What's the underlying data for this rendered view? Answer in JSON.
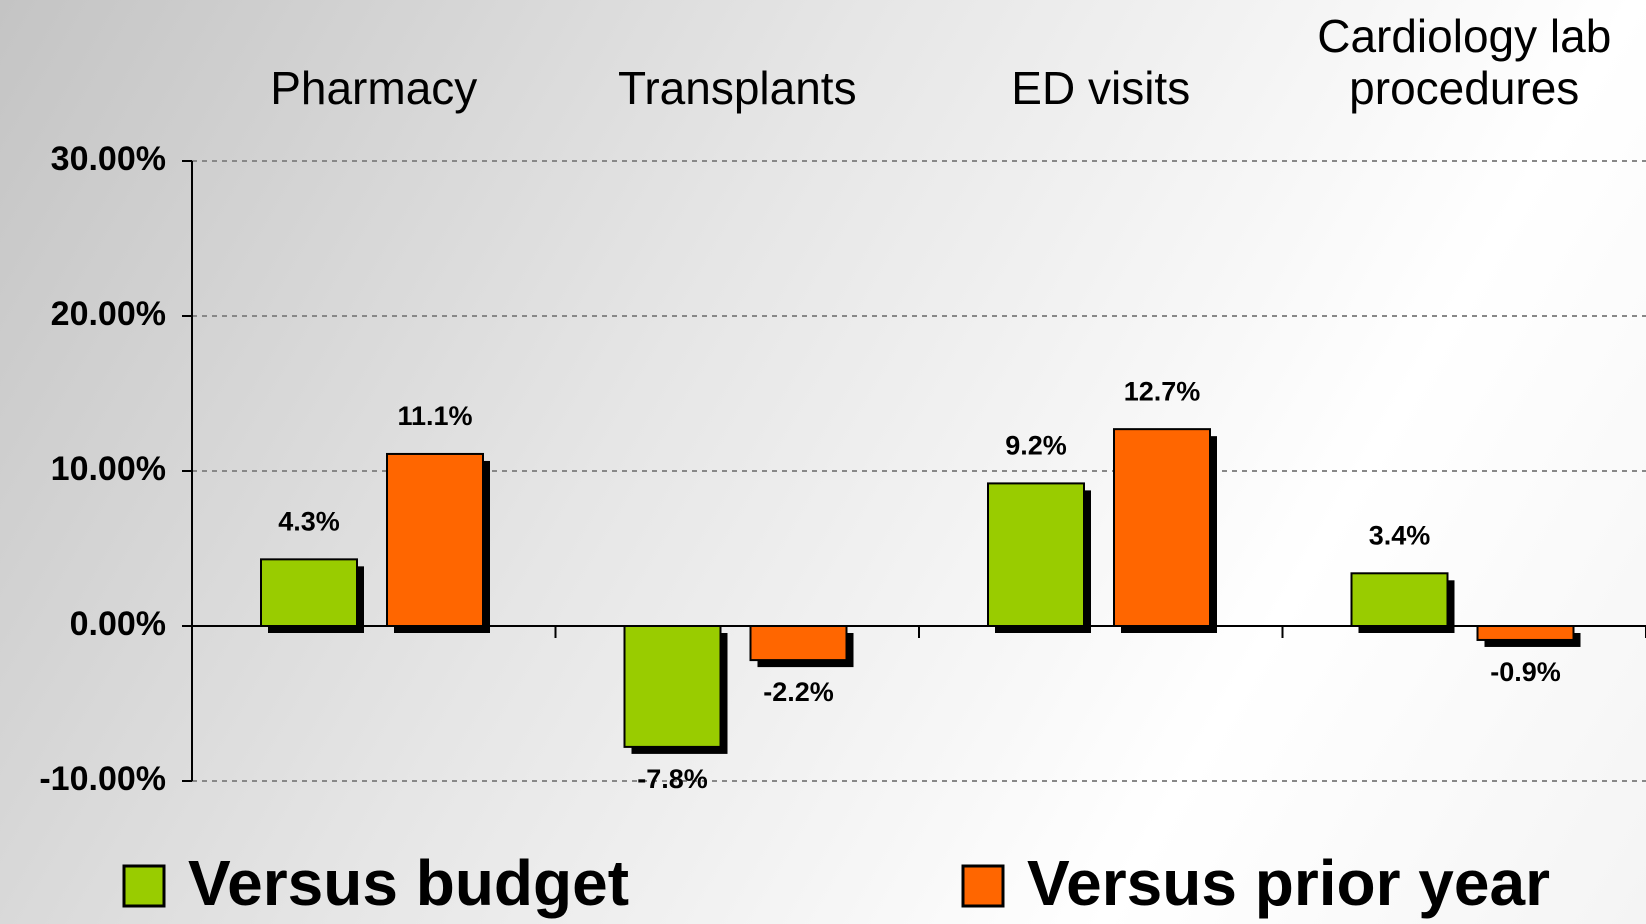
{
  "chart_data": {
    "type": "bar",
    "categories": [
      "Pharmacy",
      "Transplants",
      "ED visits",
      "Cardiology lab procedures"
    ],
    "series": [
      {
        "name": "Versus budget",
        "color": "#99cc00",
        "values": [
          4.3,
          -7.8,
          9.2,
          3.4
        ],
        "value_labels": [
          "4.3%",
          "-7.8%",
          "9.2%",
          "3.4%"
        ]
      },
      {
        "name": "Versus prior year",
        "color": "#ff6600",
        "values": [
          11.1,
          -2.2,
          12.7,
          -0.9
        ],
        "value_labels": [
          "11.1%",
          "-2.2%",
          "12.7%",
          "-0.9%"
        ]
      }
    ],
    "ylim": [
      -10,
      30
    ],
    "yticks": [
      {
        "value": -10,
        "label": "-10.00%"
      },
      {
        "value": 0,
        "label": "0.00%"
      },
      {
        "value": 10,
        "label": "10.00%"
      },
      {
        "value": 20,
        "label": "20.00%"
      },
      {
        "value": 30,
        "label": "30.00%"
      }
    ],
    "grid": true
  }
}
